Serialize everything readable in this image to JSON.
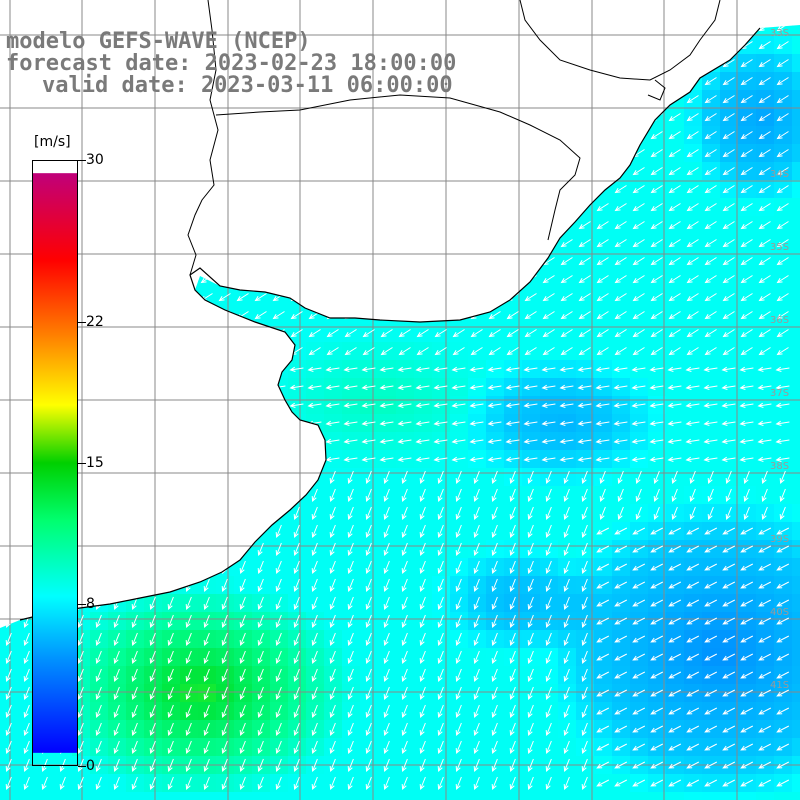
{
  "title": {
    "line1": "modelo GEFS-WAVE (NCEP)",
    "line2": "forecast date: 2023-02-23 18:00:00",
    "line3": "valid date: 2023-03-11 06:00:00"
  },
  "colorbar": {
    "units": "[m/s]",
    "ticks": [
      "30",
      "22",
      "15",
      "8",
      "0"
    ],
    "tick_values": [
      30,
      22,
      15,
      8,
      0
    ],
    "min": 0,
    "max": 30,
    "colors": [
      "#0000ff",
      "#0090ff",
      "#00ffff",
      "#00e060",
      "#00c000",
      "#ffff00",
      "#ff8000",
      "#ff0000",
      "#d8007a",
      "#c00080"
    ]
  },
  "map_labels": {
    "latitudes": [
      "33S",
      "34S",
      "35S",
      "36S",
      "37S",
      "38S",
      "39S",
      "40S",
      "41S"
    ]
  },
  "palette": {
    "land": "#ffffff",
    "grid": "#888888",
    "coast": "#000000",
    "arrows": "#ffffff"
  }
}
